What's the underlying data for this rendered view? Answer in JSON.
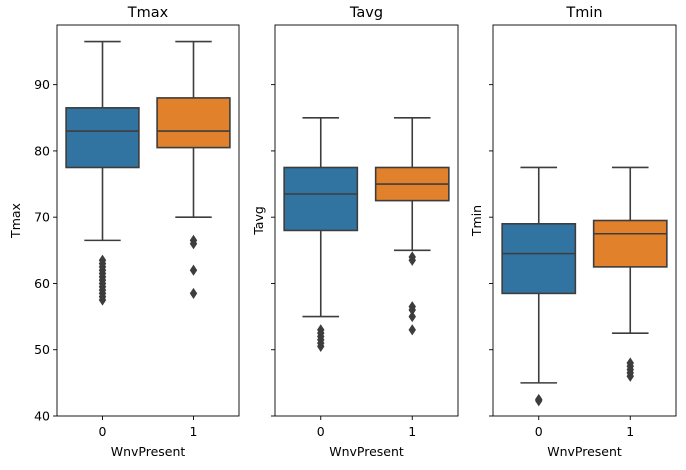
{
  "chart_data": {
    "type": "box",
    "sharey": true,
    "ylim": [
      40,
      99
    ],
    "yticks": [
      "40",
      "50",
      "60",
      "70",
      "80",
      "90"
    ],
    "xlabel": "WnvPresent",
    "categories": [
      "0",
      "1"
    ],
    "colors": {
      "0": "#3274a1",
      "1": "#e1812c"
    },
    "panels": [
      {
        "title": "Tmax",
        "ylabel": "Tmax",
        "boxes": [
          {
            "category": "0",
            "whisker_low": 66.5,
            "q1": 77.5,
            "median": 83,
            "q3": 86.5,
            "whisker_high": 96.5,
            "outliers": [
              63.5,
              63,
              62.5,
              62,
              61.5,
              61,
              60.5,
              60,
              59.5,
              59,
              58.5,
              58,
              57.5
            ]
          },
          {
            "category": "1",
            "whisker_low": 70,
            "q1": 80.5,
            "median": 83,
            "q3": 88,
            "whisker_high": 96.5,
            "outliers": [
              66.5,
              66,
              62,
              58.5
            ]
          }
        ]
      },
      {
        "title": "Tavg",
        "ylabel": "Tavg",
        "boxes": [
          {
            "category": "0",
            "whisker_low": 55,
            "q1": 68,
            "median": 73.5,
            "q3": 77.5,
            "whisker_high": 85,
            "outliers": [
              53,
              52.5,
              52,
              51.5,
              51,
              50.5
            ]
          },
          {
            "category": "1",
            "whisker_low": 65,
            "q1": 72.5,
            "median": 75,
            "q3": 77.5,
            "whisker_high": 85,
            "outliers": [
              64,
              63.5,
              56.5,
              56,
              55,
              53
            ]
          }
        ]
      },
      {
        "title": "Tmin",
        "ylabel": "Tmin",
        "boxes": [
          {
            "category": "0",
            "whisker_low": 45,
            "q1": 58.5,
            "median": 64.5,
            "q3": 69,
            "whisker_high": 77.5,
            "outliers": [
              42.5,
              42.3
            ]
          },
          {
            "category": "1",
            "whisker_low": 52.5,
            "q1": 62.5,
            "median": 67.5,
            "q3": 69.5,
            "whisker_high": 77.5,
            "outliers": [
              48,
              47.5,
              47,
              46.5,
              46
            ]
          }
        ]
      }
    ]
  }
}
